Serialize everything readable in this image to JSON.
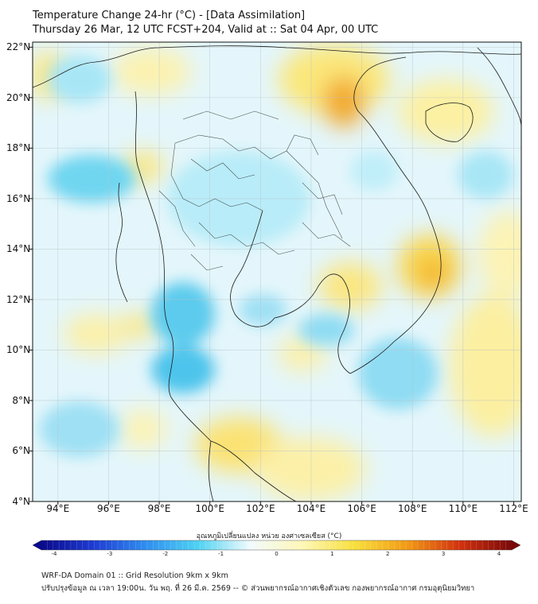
{
  "header": {
    "title": "Temperature Change 24-hr (°C) - [Data Assimilation]",
    "subtitle": "Thursday 26 Mar, 12 UTC FCST+204, Valid at :: Sat 04 Apr, 00 UTC"
  },
  "map": {
    "lat_labels": [
      {
        "text": "22°N",
        "lat": 22
      },
      {
        "text": "20°N",
        "lat": 20
      },
      {
        "text": "18°N",
        "lat": 18
      },
      {
        "text": "16°N",
        "lat": 16
      },
      {
        "text": "14°N",
        "lat": 14
      },
      {
        "text": "12°N",
        "lat": 12
      },
      {
        "text": "10°N",
        "lat": 10
      },
      {
        "text": "8°N",
        "lat": 8
      },
      {
        "text": "6°N",
        "lat": 6
      },
      {
        "text": "4°N",
        "lat": 4
      }
    ],
    "lon_labels": [
      {
        "text": "94°E",
        "lon": 94
      },
      {
        "text": "96°E",
        "lon": 96
      },
      {
        "text": "98°E",
        "lon": 98
      },
      {
        "text": "100°E",
        "lon": 100
      },
      {
        "text": "102°E",
        "lon": 102
      },
      {
        "text": "104°E",
        "lon": 104
      },
      {
        "text": "106°E",
        "lon": 106
      },
      {
        "text": "108°E",
        "lon": 108
      },
      {
        "text": "110°E",
        "lon": 110
      },
      {
        "text": "112°E",
        "lon": 112
      }
    ],
    "extent": {
      "lon_min": 93,
      "lon_max": 112.3,
      "lat_min": 4,
      "lat_max": 22.2
    }
  },
  "colorbar": {
    "title": "อุณหภูมิเปลี่ยนแปลง หน่วย องศาเซลเซียส (°C)",
    "range": [
      -4,
      4
    ],
    "ticks": [
      "-4",
      "-3",
      "-2",
      "-1",
      "0",
      "1",
      "2",
      "3",
      "4"
    ],
    "colors": [
      "#0a0a8a",
      "#1e3cd2",
      "#2f8ef0",
      "#4fd2f2",
      "#f2fbfd",
      "#fdf7b6",
      "#f8df3c",
      "#f29a16",
      "#d2320e",
      "#7a0a0a"
    ]
  },
  "footer": {
    "line1": "WRF-DA Domain 01 :: Grid Resolution 9km x 9km",
    "line2": "ปรับปรุงข้อมูล ณ เวลา 19:00น. วัน พฤ. ที่ 26 มี.ค. 2569 -- © ส่วนพยากรณ์อากาศเชิงตัวเลข กองพยากรณ์อากาศ กรมอุตุนิยมวิทยา"
  }
}
